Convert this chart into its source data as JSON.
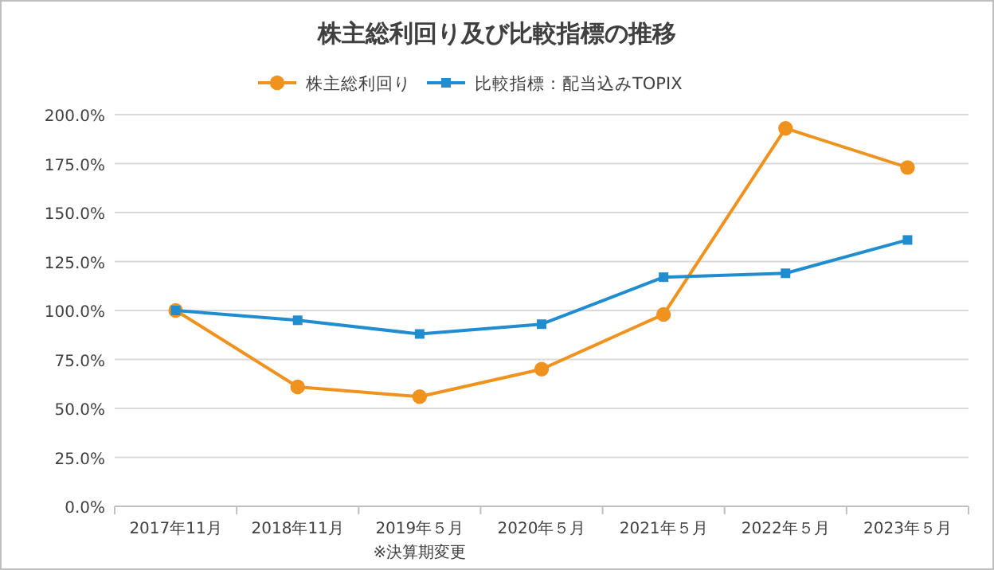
{
  "chart_data": {
    "type": "line",
    "title": "株主総利回り及び比較指標の推移",
    "categories": [
      "2017年11月",
      "2018年11月",
      "2019年５月",
      "2020年５月",
      "2021年５月",
      "2022年５月",
      "2023年５月"
    ],
    "series": [
      {
        "name": "株主総利回り",
        "color": "#f0921e",
        "marker": "circle",
        "values": [
          100,
          61,
          56,
          70,
          98,
          193,
          173
        ]
      },
      {
        "name": "比較指標：配当込みTOPIX",
        "color": "#1f8dd0",
        "marker": "square",
        "values": [
          100,
          95,
          88,
          93,
          117,
          119,
          136
        ]
      }
    ],
    "ylim": [
      0,
      200
    ],
    "yticks": [
      {
        "value": 0,
        "label": "0.0%"
      },
      {
        "value": 25,
        "label": "25.0%"
      },
      {
        "value": 50,
        "label": "50.0%"
      },
      {
        "value": 75,
        "label": "75.0%"
      },
      {
        "value": 100,
        "label": "100.0%"
      },
      {
        "value": 125,
        "label": "125.0%"
      },
      {
        "value": 150,
        "label": "150.0%"
      },
      {
        "value": 175,
        "label": "175.0%"
      },
      {
        "value": 200,
        "label": "200.0%"
      }
    ],
    "grid": "y",
    "legend": "top",
    "annotations": [
      "※決算期変更"
    ]
  }
}
